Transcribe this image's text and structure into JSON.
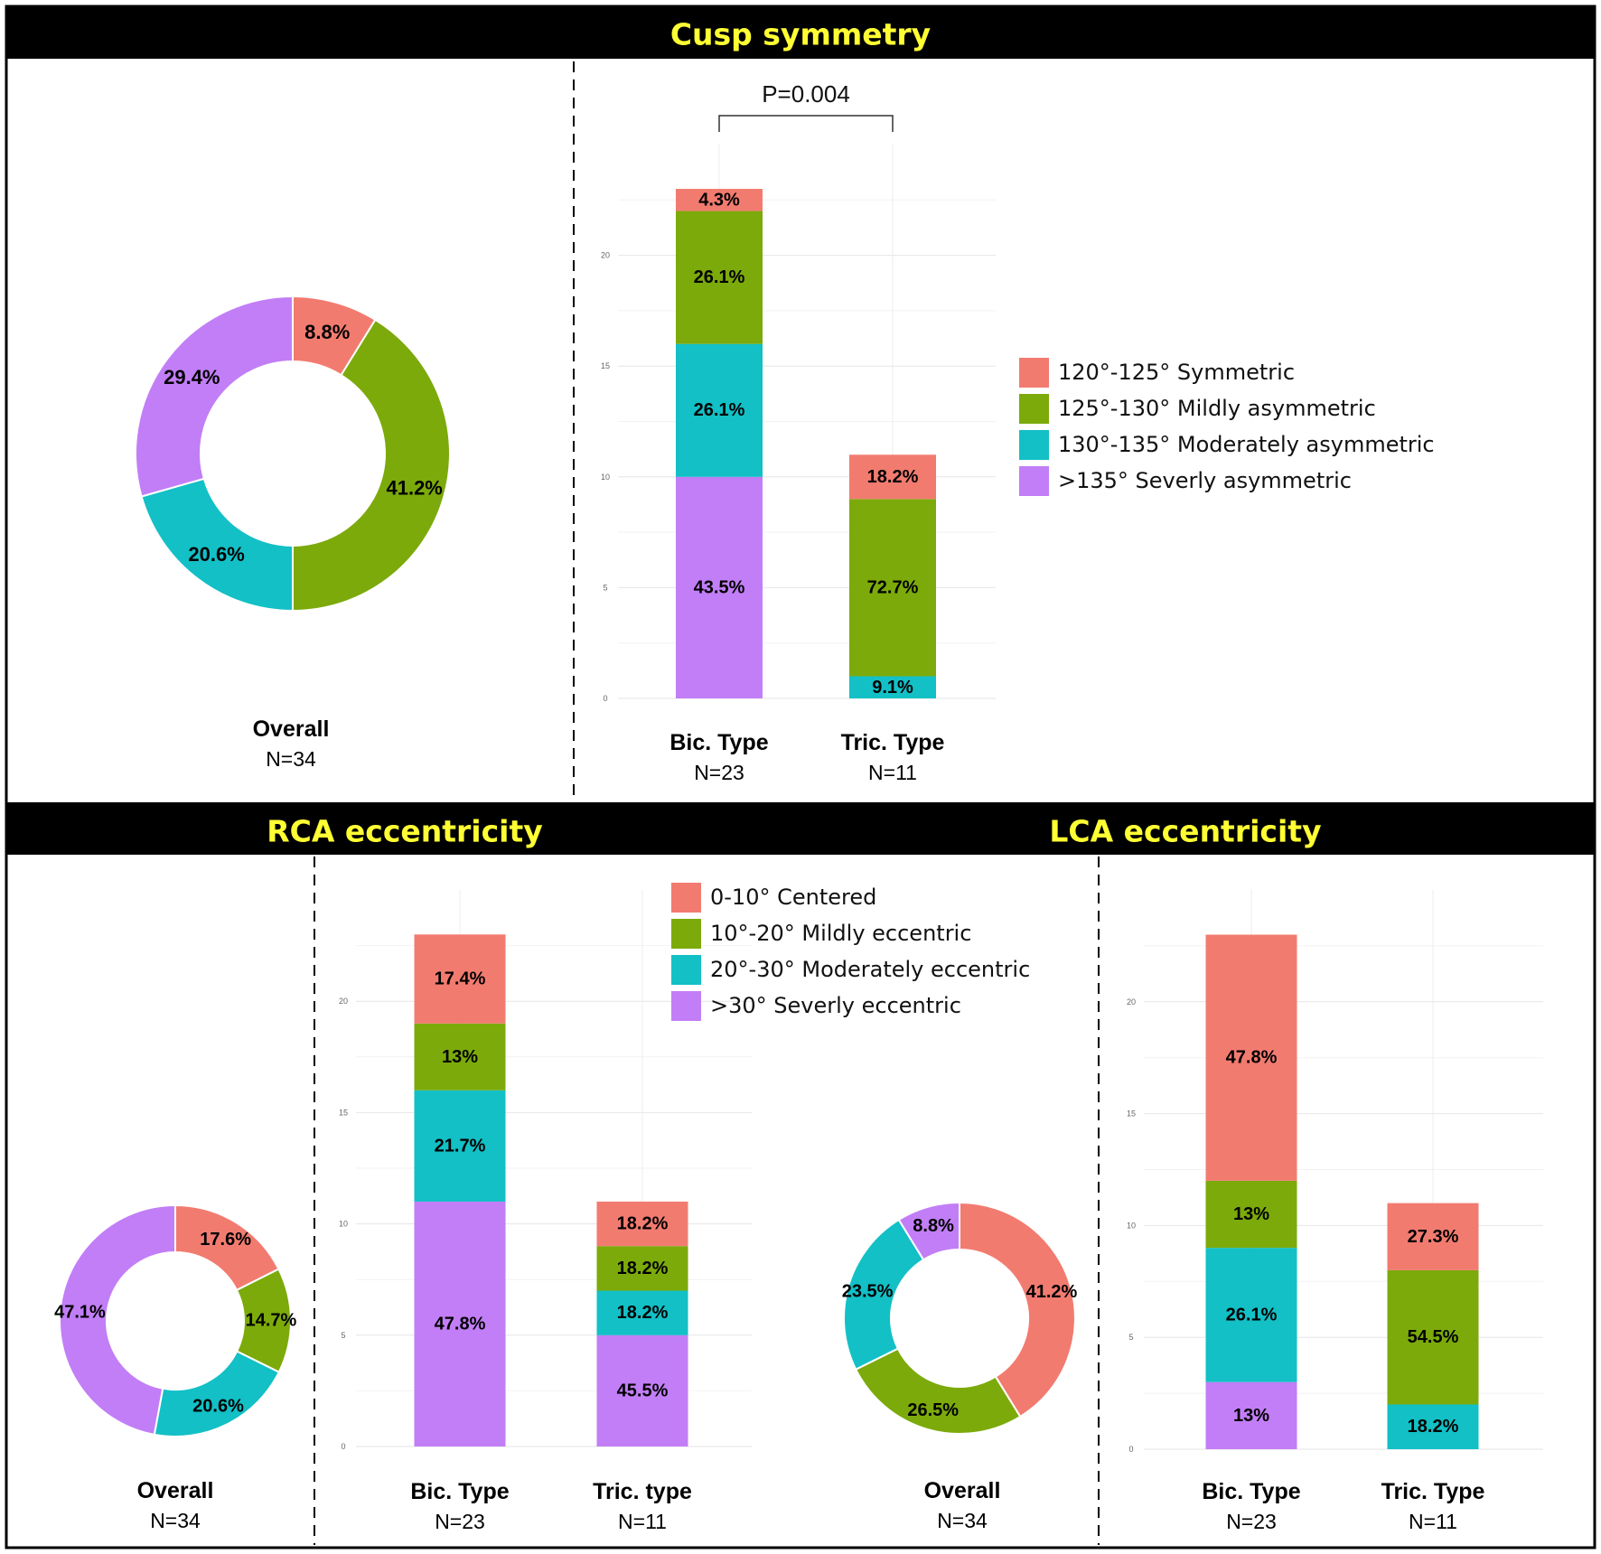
{
  "colors": {
    "c0": "#f27b70",
    "c1": "#7caa0b",
    "c2": "#12c0c6",
    "c3": "#c27ef6",
    "header_bg": "#000000",
    "title_text": "#ffff33"
  },
  "headers": {
    "cusp": "Cusp symmetry",
    "rca": "RCA eccentricity",
    "lca": "LCA eccentricity"
  },
  "legends": {
    "cusp": [
      "120°-125° Symmetric",
      "125°-130° Mildly asymmetric",
      "130°-135° Moderately asymmetric",
      ">135° Severly asymmetric"
    ],
    "ecc": [
      "0-10° Centered",
      "10°-20° Mildly eccentric",
      "20°-30° Moderately eccentric",
      ">30° Severly eccentric"
    ]
  },
  "chart_data": [
    {
      "id": "cusp_overall",
      "type": "pie",
      "title": "Cusp symmetry",
      "label": "Overall",
      "n_label": "N=34",
      "slices": [
        {
          "name": "120°-125° Symmetric",
          "value": 8.8,
          "label": "8.8%"
        },
        {
          "name": "125°-130° Mildly asymmetric",
          "value": 41.2,
          "label": "41.2%"
        },
        {
          "name": "130°-135° Moderately asymmetric",
          "value": 20.6,
          "label": "20.6%"
        },
        {
          "name": ">135° Severly asymmetric",
          "value": 29.4,
          "label": "29.4%"
        }
      ]
    },
    {
      "id": "cusp_bars",
      "type": "bar",
      "stacked": true,
      "title": "Cusp symmetry",
      "ylim": [
        0,
        25
      ],
      "yticks": [
        0,
        5,
        10,
        15,
        20
      ],
      "categories": [
        "Bic. Type",
        "Tric. Type"
      ],
      "n_labels": [
        "N=23",
        "N=11"
      ],
      "annotation": "P=0.004",
      "series": [
        {
          "name": "120°-125° Symmetric",
          "values": [
            1,
            2
          ],
          "labels": [
            "4.3%",
            "18.2%"
          ]
        },
        {
          "name": "125°-130° Mildly asymmetric",
          "values": [
            6,
            8
          ],
          "labels": [
            "26.1%",
            "72.7%"
          ]
        },
        {
          "name": "130°-135° Moderately asymmetric",
          "values": [
            6,
            1
          ],
          "labels": [
            "26.1%",
            "9.1%"
          ]
        },
        {
          "name": ">135° Severly asymmetric",
          "values": [
            10,
            0
          ],
          "labels": [
            "43.5%",
            ""
          ]
        }
      ]
    },
    {
      "id": "rca_overall",
      "type": "pie",
      "title": "RCA eccentricity",
      "label": "Overall",
      "n_label": "N=34",
      "slices": [
        {
          "name": "0-10° Centered",
          "value": 17.6,
          "label": "17.6%"
        },
        {
          "name": "10°-20° Mildly eccentric",
          "value": 14.7,
          "label": "14.7%"
        },
        {
          "name": "20°-30° Moderately eccentric",
          "value": 20.6,
          "label": "20.6%"
        },
        {
          "name": ">30° Severly eccentric",
          "value": 47.1,
          "label": "47.1%"
        }
      ]
    },
    {
      "id": "rca_bars",
      "type": "bar",
      "stacked": true,
      "title": "RCA eccentricity",
      "ylim": [
        0,
        25
      ],
      "yticks": [
        0,
        5,
        10,
        15,
        20
      ],
      "categories": [
        "Bic. Type",
        "Tric. type"
      ],
      "n_labels": [
        "N=23",
        "N=11"
      ],
      "series": [
        {
          "name": "0-10° Centered",
          "values": [
            4,
            2
          ],
          "labels": [
            "17.4%",
            "18.2%"
          ]
        },
        {
          "name": "10°-20° Mildly eccentric",
          "values": [
            3,
            2
          ],
          "labels": [
            "13%",
            "18.2%"
          ]
        },
        {
          "name": "20°-30° Moderately eccentric",
          "values": [
            5,
            2
          ],
          "labels": [
            "21.7%",
            "18.2%"
          ]
        },
        {
          "name": ">30° Severly eccentric",
          "values": [
            11,
            5
          ],
          "labels": [
            "47.8%",
            "45.5%"
          ]
        }
      ]
    },
    {
      "id": "lca_overall",
      "type": "pie",
      "title": "LCA eccentricity",
      "label": "Overall",
      "n_label": "N=34",
      "slices": [
        {
          "name": "0-10° Centered",
          "value": 41.2,
          "label": "41.2%"
        },
        {
          "name": "10°-20° Mildly eccentric",
          "value": 26.5,
          "label": "26.5%"
        },
        {
          "name": "20°-30° Moderately eccentric",
          "value": 23.5,
          "label": "23.5%"
        },
        {
          "name": ">30° Severly eccentric",
          "value": 8.8,
          "label": "8.8%"
        }
      ]
    },
    {
      "id": "lca_bars",
      "type": "bar",
      "stacked": true,
      "title": "LCA eccentricity",
      "ylim": [
        0,
        25
      ],
      "yticks": [
        0,
        5,
        10,
        15,
        20
      ],
      "categories": [
        "Bic. Type",
        "Tric. Type"
      ],
      "n_labels": [
        "N=23",
        "N=11"
      ],
      "series": [
        {
          "name": "0-10° Centered",
          "values": [
            11,
            3
          ],
          "labels": [
            "47.8%",
            "27.3%"
          ]
        },
        {
          "name": "10°-20° Mildly eccentric",
          "values": [
            3,
            6
          ],
          "labels": [
            "13%",
            "54.5%"
          ]
        },
        {
          "name": "20°-30° Moderately eccentric",
          "values": [
            6,
            2
          ],
          "labels": [
            "26.1%",
            "18.2%"
          ]
        },
        {
          "name": ">30° Severly eccentric",
          "values": [
            3,
            0
          ],
          "labels": [
            "13%",
            ""
          ]
        }
      ]
    }
  ]
}
